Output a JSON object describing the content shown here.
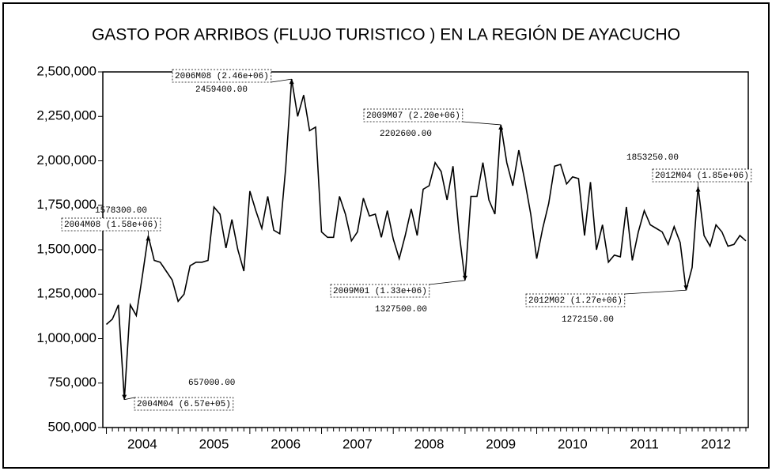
{
  "chart_data": {
    "type": "line",
    "title": "GASTO POR ARRIBOS (FLUJO TURISTICO ) EN LA REGIÓN DE AYACUCHO",
    "x": [
      2004,
      2004.083,
      2004.167,
      2004.25,
      2004.333,
      2004.417,
      2004.5,
      2004.583,
      2004.667,
      2004.75,
      2004.833,
      2004.917,
      2005,
      2005.083,
      2005.167,
      2005.25,
      2005.333,
      2005.417,
      2005.5,
      2005.583,
      2005.667,
      2005.75,
      2005.833,
      2005.917,
      2006,
      2006.083,
      2006.167,
      2006.25,
      2006.333,
      2006.417,
      2006.5,
      2006.583,
      2006.667,
      2006.75,
      2006.833,
      2006.917,
      2007,
      2007.083,
      2007.167,
      2007.25,
      2007.333,
      2007.417,
      2007.5,
      2007.583,
      2007.667,
      2007.75,
      2007.833,
      2007.917,
      2008,
      2008.083,
      2008.167,
      2008.25,
      2008.333,
      2008.417,
      2008.5,
      2008.583,
      2008.667,
      2008.75,
      2008.833,
      2008.917,
      2009,
      2009.083,
      2009.167,
      2009.25,
      2009.333,
      2009.417,
      2009.5,
      2009.583,
      2009.667,
      2009.75,
      2009.833,
      2009.917,
      2010,
      2010.083,
      2010.167,
      2010.25,
      2010.333,
      2010.417,
      2010.5,
      2010.583,
      2010.667,
      2010.75,
      2010.833,
      2010.917,
      2011,
      2011.083,
      2011.167,
      2011.25,
      2011.333,
      2011.417,
      2011.5,
      2011.583,
      2011.667,
      2011.75,
      2011.833,
      2011.917,
      2012,
      2012.083,
      2012.167,
      2012.25,
      2012.333,
      2012.417,
      2012.5,
      2012.583,
      2012.667,
      2012.75,
      2012.833,
      2012.917
    ],
    "series": [
      {
        "color": "#000000",
        "values": [
          1080000,
          1110000,
          1190000,
          657000,
          1190000,
          1130000,
          1350000,
          1578300,
          1440000,
          1430000,
          1380000,
          1330000,
          1210000,
          1250000,
          1410000,
          1430000,
          1430000,
          1440000,
          1740000,
          1700000,
          1510000,
          1670000,
          1500000,
          1380000,
          1830000,
          1720000,
          1620000,
          1800000,
          1610000,
          1590000,
          1960000,
          2459400,
          2250000,
          2370000,
          2170000,
          2190000,
          1600000,
          1570000,
          1570000,
          1800000,
          1700000,
          1550000,
          1600000,
          1790000,
          1690000,
          1700000,
          1570000,
          1720000,
          1560000,
          1450000,
          1580000,
          1730000,
          1580000,
          1840000,
          1860000,
          1990000,
          1940000,
          1780000,
          1970000,
          1600000,
          1327500,
          1800000,
          1800000,
          1990000,
          1780000,
          1700000,
          2202600,
          1990000,
          1860000,
          2060000,
          1890000,
          1700000,
          1450000,
          1620000,
          1760000,
          1970000,
          1980000,
          1870000,
          1910000,
          1900000,
          1580000,
          1880000,
          1500000,
          1640000,
          1430000,
          1470000,
          1460000,
          1740000,
          1440000,
          1600000,
          1720000,
          1640000,
          1620000,
          1600000,
          1530000,
          1630000,
          1540000,
          1272150,
          1400000,
          1853250,
          1580000,
          1520000,
          1640000,
          1600000,
          1520000,
          1530000,
          1580000,
          1550000
        ]
      }
    ],
    "xlim": [
      2003.95,
      2012.95
    ],
    "xticks": [
      {
        "value": 2004.5,
        "label": "2004"
      },
      {
        "value": 2005.5,
        "label": "2005"
      },
      {
        "value": 2006.5,
        "label": "2006"
      },
      {
        "value": 2007.5,
        "label": "2007"
      },
      {
        "value": 2008.5,
        "label": "2008"
      },
      {
        "value": 2009.5,
        "label": "2009"
      },
      {
        "value": 2010.5,
        "label": "2010"
      },
      {
        "value": 2011.5,
        "label": "2011"
      },
      {
        "value": 2012.5,
        "label": "2012"
      }
    ],
    "ylim": [
      500000,
      2500000
    ],
    "yticks": [
      {
        "value": 500000,
        "label": "500,000"
      },
      {
        "value": 750000,
        "label": "750,000"
      },
      {
        "value": 1000000,
        "label": "1,000,000"
      },
      {
        "value": 1250000,
        "label": "1,250,000"
      },
      {
        "value": 1500000,
        "label": "1,500,000"
      },
      {
        "value": 1750000,
        "label": "1,750,000"
      },
      {
        "value": 2000000,
        "label": "2,000,000"
      },
      {
        "value": 2250000,
        "label": "2,250,000"
      },
      {
        "value": 2500000,
        "label": "2,500,000"
      }
    ],
    "annotations": [
      {
        "label": "2004M08 (1.58e+06)",
        "value_label": "1578300.00"
      },
      {
        "label": "2004M04 (6.57e+05)",
        "value_label": "657000.00"
      },
      {
        "label": "2006M08 (2.46e+06)",
        "value_label": "2459400.00"
      },
      {
        "label": "2009M07 (2.20e+06)",
        "value_label": "2202600.00"
      },
      {
        "label": "2009M01 (1.33e+06)",
        "value_label": "1327500.00"
      },
      {
        "label": "2012M02 (1.27e+06)",
        "value_label": "1272150.00"
      },
      {
        "label": "2012M04 (1.85e+06)",
        "value_label": "1853250.00"
      }
    ]
  }
}
